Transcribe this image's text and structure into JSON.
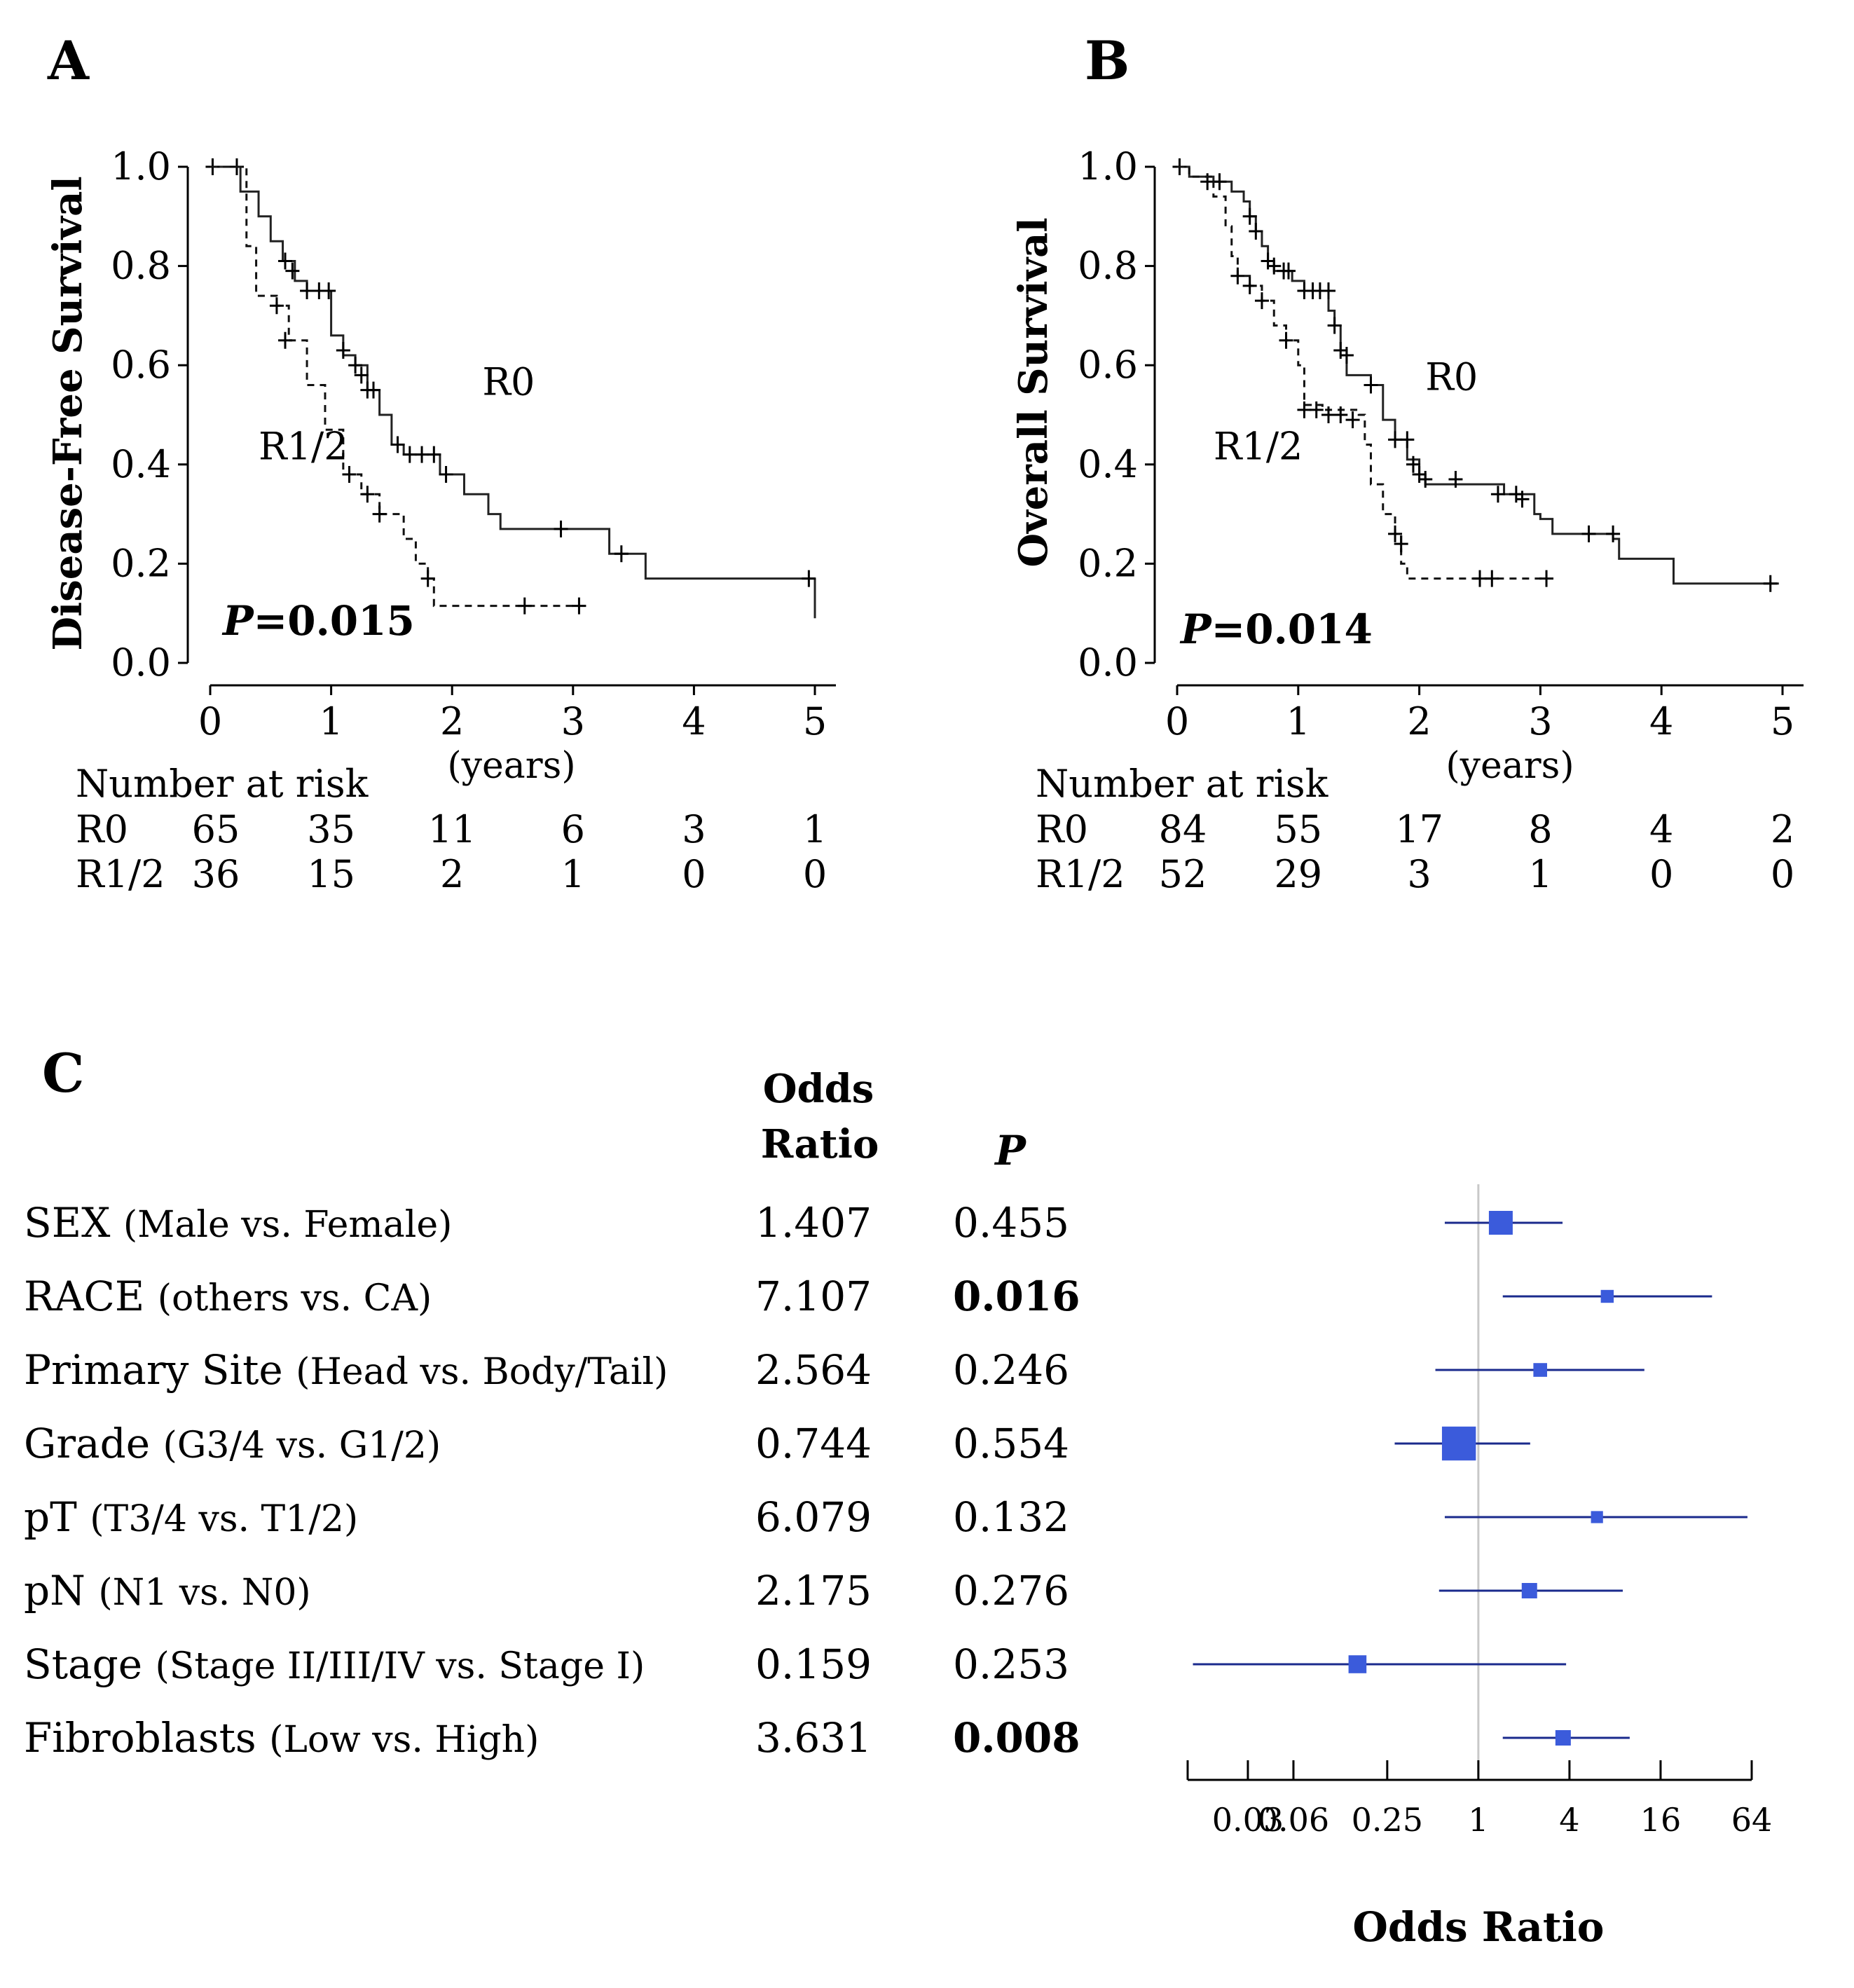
{
  "panels": {
    "A": {
      "letter": "A"
    },
    "B": {
      "letter": "B"
    },
    "C": {
      "letter": "C"
    }
  },
  "chart_data": [
    {
      "id": "A",
      "type": "line",
      "title": "",
      "ylabel": "Disease-Free Survival",
      "xlabel": "(years)",
      "xlim": [
        0,
        5
      ],
      "ylim": [
        0,
        1
      ],
      "xticks": [
        0,
        1,
        2,
        3,
        4,
        5
      ],
      "yticks": [
        "0.0",
        "0.2",
        "0.4",
        "0.6",
        "0.8",
        "1.0"
      ],
      "p_label": "P",
      "p_value": "=0.015",
      "series": [
        {
          "name": "R0",
          "style": "solid",
          "steps": [
            [
              0,
              1.0
            ],
            [
              0.22,
              1.0
            ],
            [
              0.25,
              0.95
            ],
            [
              0.4,
              0.9
            ],
            [
              0.5,
              0.85
            ],
            [
              0.6,
              0.81
            ],
            [
              0.7,
              0.77
            ],
            [
              0.8,
              0.75
            ],
            [
              1.0,
              0.66
            ],
            [
              1.1,
              0.62
            ],
            [
              1.2,
              0.6
            ],
            [
              1.3,
              0.55
            ],
            [
              1.4,
              0.5
            ],
            [
              1.5,
              0.44
            ],
            [
              1.6,
              0.42
            ],
            [
              1.9,
              0.38
            ],
            [
              2.1,
              0.34
            ],
            [
              2.3,
              0.3
            ],
            [
              2.4,
              0.27
            ],
            [
              3.3,
              0.22
            ],
            [
              3.6,
              0.17
            ],
            [
              5.0,
              0.17
            ]
          ],
          "censored": [
            [
              0.02,
              1.0
            ],
            [
              0.22,
              1.0
            ],
            [
              0.62,
              0.81
            ],
            [
              0.68,
              0.79
            ],
            [
              0.8,
              0.75
            ],
            [
              0.9,
              0.75
            ],
            [
              0.98,
              0.75
            ],
            [
              1.1,
              0.63
            ],
            [
              1.2,
              0.6
            ],
            [
              1.25,
              0.58
            ],
            [
              1.3,
              0.55
            ],
            [
              1.35,
              0.55
            ],
            [
              1.55,
              0.44
            ],
            [
              1.65,
              0.42
            ],
            [
              1.75,
              0.42
            ],
            [
              1.85,
              0.42
            ],
            [
              1.95,
              0.38
            ],
            [
              2.9,
              0.27
            ],
            [
              3.4,
              0.22
            ],
            [
              4.95,
              0.17
            ]
          ],
          "end_drop": [
            5.0,
            0.09
          ]
        },
        {
          "name": "R1/2",
          "style": "dashed",
          "steps": [
            [
              0,
              1.0
            ],
            [
              0.22,
              1.0
            ],
            [
              0.3,
              0.84
            ],
            [
              0.38,
              0.74
            ],
            [
              0.55,
              0.72
            ],
            [
              0.65,
              0.65
            ],
            [
              0.8,
              0.56
            ],
            [
              0.95,
              0.47
            ],
            [
              1.1,
              0.38
            ],
            [
              1.25,
              0.34
            ],
            [
              1.4,
              0.3
            ],
            [
              1.6,
              0.25
            ],
            [
              1.7,
              0.2
            ],
            [
              1.8,
              0.17
            ],
            [
              1.85,
              0.115
            ],
            [
              3.05,
              0.115
            ]
          ],
          "censored": [
            [
              0.55,
              0.72
            ],
            [
              0.62,
              0.65
            ],
            [
              1.15,
              0.38
            ],
            [
              1.3,
              0.34
            ],
            [
              1.4,
              0.3
            ],
            [
              1.8,
              0.17
            ],
            [
              2.6,
              0.115
            ],
            [
              3.05,
              0.115
            ]
          ]
        }
      ],
      "curve_labels": [
        {
          "text": "R0",
          "x": 2.25,
          "y": 0.54
        },
        {
          "text": "R1/2",
          "x": 0.4,
          "y": 0.41
        }
      ],
      "risk_table": {
        "header": "Number at risk",
        "rows": [
          {
            "label": "R0",
            "values": [
              "65",
              "35",
              "11",
              "6",
              "3",
              "1"
            ]
          },
          {
            "label": "R1/2",
            "values": [
              "36",
              "15",
              "2",
              "1",
              "0",
              "0"
            ]
          }
        ]
      }
    },
    {
      "id": "B",
      "type": "line",
      "title": "",
      "ylabel": "Overall Survival",
      "xlabel": "(years)",
      "xlim": [
        0,
        5
      ],
      "ylim": [
        0,
        1
      ],
      "xticks": [
        0,
        1,
        2,
        3,
        4,
        5
      ],
      "yticks": [
        "0.0",
        "0.2",
        "0.4",
        "0.6",
        "0.8",
        "1.0"
      ],
      "p_label": "P",
      "p_value": "=0.014",
      "series": [
        {
          "name": "R0",
          "style": "solid",
          "steps": [
            [
              0,
              1.0
            ],
            [
              0.1,
              0.98
            ],
            [
              0.3,
              0.97
            ],
            [
              0.45,
              0.95
            ],
            [
              0.55,
              0.93
            ],
            [
              0.6,
              0.9
            ],
            [
              0.65,
              0.87
            ],
            [
              0.7,
              0.84
            ],
            [
              0.75,
              0.81
            ],
            [
              0.8,
              0.79
            ],
            [
              0.95,
              0.77
            ],
            [
              1.05,
              0.75
            ],
            [
              1.25,
              0.71
            ],
            [
              1.3,
              0.68
            ],
            [
              1.35,
              0.63
            ],
            [
              1.4,
              0.58
            ],
            [
              1.6,
              0.56
            ],
            [
              1.7,
              0.49
            ],
            [
              1.8,
              0.45
            ],
            [
              1.9,
              0.41
            ],
            [
              2.0,
              0.38
            ],
            [
              2.05,
              0.36
            ],
            [
              2.7,
              0.34
            ],
            [
              2.95,
              0.3
            ],
            [
              3.0,
              0.29
            ],
            [
              3.1,
              0.26
            ],
            [
              3.6,
              0.25
            ],
            [
              3.65,
              0.21
            ],
            [
              4.1,
              0.16
            ],
            [
              4.97,
              0.16
            ]
          ],
          "censored": [
            [
              0.02,
              1.0
            ],
            [
              0.25,
              0.97
            ],
            [
              0.35,
              0.97
            ],
            [
              0.6,
              0.9
            ],
            [
              0.65,
              0.87
            ],
            [
              0.75,
              0.81
            ],
            [
              0.8,
              0.8
            ],
            [
              0.88,
              0.79
            ],
            [
              0.92,
              0.79
            ],
            [
              1.05,
              0.75
            ],
            [
              1.12,
              0.75
            ],
            [
              1.18,
              0.75
            ],
            [
              1.25,
              0.75
            ],
            [
              1.3,
              0.68
            ],
            [
              1.35,
              0.63
            ],
            [
              1.4,
              0.62
            ],
            [
              1.6,
              0.56
            ],
            [
              1.8,
              0.45
            ],
            [
              1.9,
              0.45
            ],
            [
              1.95,
              0.4
            ],
            [
              2.0,
              0.38
            ],
            [
              2.05,
              0.37
            ],
            [
              2.3,
              0.37
            ],
            [
              2.65,
              0.34
            ],
            [
              2.8,
              0.34
            ],
            [
              2.85,
              0.33
            ],
            [
              3.4,
              0.26
            ],
            [
              3.6,
              0.26
            ],
            [
              4.9,
              0.16
            ]
          ]
        },
        {
          "name": "R1/2",
          "style": "dashed",
          "steps": [
            [
              0,
              1.0
            ],
            [
              0.1,
              0.98
            ],
            [
              0.3,
              0.94
            ],
            [
              0.4,
              0.88
            ],
            [
              0.45,
              0.82
            ],
            [
              0.5,
              0.78
            ],
            [
              0.6,
              0.76
            ],
            [
              0.7,
              0.73
            ],
            [
              0.8,
              0.68
            ],
            [
              0.9,
              0.65
            ],
            [
              1.0,
              0.6
            ],
            [
              1.05,
              0.52
            ],
            [
              1.2,
              0.51
            ],
            [
              1.5,
              0.5
            ],
            [
              1.55,
              0.44
            ],
            [
              1.6,
              0.36
            ],
            [
              1.7,
              0.3
            ],
            [
              1.8,
              0.26
            ],
            [
              1.85,
              0.2
            ],
            [
              1.9,
              0.17
            ],
            [
              3.05,
              0.17
            ]
          ],
          "censored": [
            [
              0.5,
              0.78
            ],
            [
              0.6,
              0.76
            ],
            [
              0.7,
              0.73
            ],
            [
              0.9,
              0.65
            ],
            [
              1.05,
              0.51
            ],
            [
              1.15,
              0.51
            ],
            [
              1.25,
              0.5
            ],
            [
              1.35,
              0.5
            ],
            [
              1.45,
              0.49
            ],
            [
              1.8,
              0.26
            ],
            [
              1.85,
              0.24
            ],
            [
              2.5,
              0.17
            ],
            [
              2.6,
              0.17
            ],
            [
              3.05,
              0.17
            ]
          ]
        }
      ],
      "curve_labels": [
        {
          "text": "R0",
          "x": 2.05,
          "y": 0.55
        },
        {
          "text": "R1/2",
          "x": 0.3,
          "y": 0.41
        }
      ],
      "risk_table": {
        "header": "Number at risk",
        "rows": [
          {
            "label": "R0",
            "values": [
              "84",
              "55",
              "17",
              "8",
              "4",
              "2"
            ]
          },
          {
            "label": "R1/2",
            "values": [
              "52",
              "29",
              "3",
              "1",
              "0",
              "0"
            ]
          }
        ]
      }
    },
    {
      "id": "C",
      "type": "forest",
      "xlabel": "Odds Ratio",
      "xscale": "log2",
      "xlim": [
        0.012,
        64
      ],
      "xticks": [
        "0.03",
        "0.06",
        "0.25",
        "1",
        "4",
        "16",
        "64"
      ],
      "xtick_values": [
        0.03,
        0.06,
        0.25,
        1,
        4,
        16,
        64
      ],
      "reference": 1,
      "col_headers": {
        "or_line1": "Odds",
        "or_line2": "Ratio",
        "p": "P"
      },
      "rows": [
        {
          "name": "SEX",
          "detail": "(Male vs. Female)",
          "or_text": "1.407",
          "p_text": "0.455",
          "sig": false,
          "or": 1.407,
          "lo": 0.6,
          "hi": 3.6,
          "weight": 1.0
        },
        {
          "name": "RACE",
          "detail": "(others vs. CA)",
          "or_text": "7.107",
          "p_text": "0.016",
          "sig": true,
          "or": 7.107,
          "lo": 1.45,
          "hi": 35,
          "weight": 0.35
        },
        {
          "name": "Primary Site",
          "detail": "(Head vs. Body/Tail)",
          "or_text": "2.564",
          "p_text": "0.246",
          "sig": false,
          "or": 2.564,
          "lo": 0.52,
          "hi": 12.5,
          "weight": 0.4
        },
        {
          "name": "Grade",
          "detail": "(G3/4 vs. G1/2)",
          "or_text": "0.744",
          "p_text": "0.554",
          "sig": false,
          "or": 0.744,
          "lo": 0.28,
          "hi": 2.2,
          "weight": 1.6
        },
        {
          "name": "pT",
          "detail": "(T3/4 vs. T1/2)",
          "or_text": "6.079",
          "p_text": "0.132",
          "sig": false,
          "or": 6.079,
          "lo": 0.6,
          "hi": 60,
          "weight": 0.3
        },
        {
          "name": "pN",
          "detail": "(N1 vs. N0)",
          "or_text": "2.175",
          "p_text": "0.276",
          "sig": false,
          "or": 2.175,
          "lo": 0.55,
          "hi": 9.0,
          "weight": 0.5
        },
        {
          "name": "Stage",
          "detail": "(Stage II/III/IV vs. Stage I)",
          "or_text": "0.159",
          "p_text": "0.253",
          "sig": false,
          "or": 0.159,
          "lo": 0.013,
          "hi": 3.8,
          "weight": 0.65
        },
        {
          "name": "Fibroblasts",
          "detail": "(Low vs. High)",
          "or_text": "3.631",
          "p_text": "0.008",
          "sig": true,
          "or": 3.631,
          "lo": 1.45,
          "hi": 10,
          "weight": 0.5
        }
      ]
    }
  ]
}
